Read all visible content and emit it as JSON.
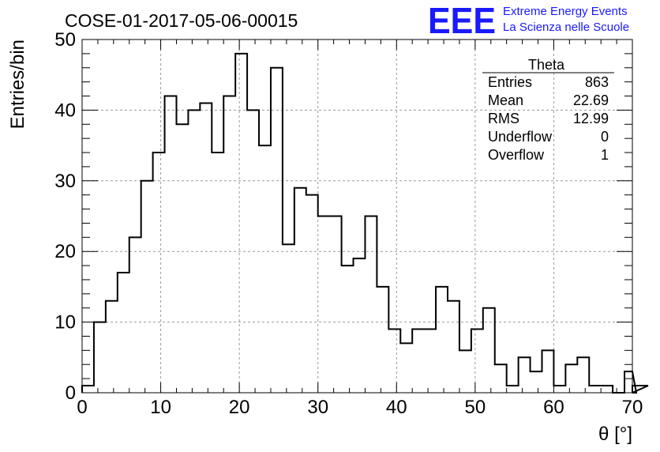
{
  "chart_data": {
    "type": "bar",
    "title": "COSE-01-2017-05-06-00015",
    "xlabel": "θ [°]",
    "ylabel": "Entries/bin",
    "xlim": [
      0,
      70
    ],
    "ylim": [
      0,
      50
    ],
    "bin_width": 1.5,
    "grid": true,
    "xticks": [
      "0",
      "10",
      "20",
      "30",
      "40",
      "50",
      "60",
      "70"
    ],
    "yticks": [
      "0",
      "10",
      "20",
      "30",
      "40",
      "50"
    ],
    "values": [
      1,
      10,
      13,
      17,
      22,
      30,
      34,
      42,
      38,
      40,
      41,
      34,
      42,
      48,
      40,
      35,
      46,
      21,
      29,
      28,
      25,
      25,
      18,
      19,
      25,
      15,
      9,
      7,
      9,
      9,
      15,
      13,
      6,
      9,
      12,
      4,
      1,
      5,
      3,
      6,
      1,
      4,
      5,
      1,
      1,
      0,
      3,
      0,
      1
    ],
    "stats_box": {
      "title": "Theta",
      "rows": [
        {
          "label": "Entries",
          "value": "863"
        },
        {
          "label": "Mean",
          "value": "22.69"
        },
        {
          "label": "RMS",
          "value": "12.99"
        },
        {
          "label": "Underflow",
          "value": "0"
        },
        {
          "label": "Overflow",
          "value": "1"
        }
      ]
    }
  },
  "logo": {
    "mark": "EEE",
    "line1": "Extreme Energy Events",
    "line2": "La Scienza nelle Scuole",
    "color": "#1a1aff"
  },
  "colors": {
    "histogram": "#000000",
    "grid": "#999999",
    "logo": "#1a1aff"
  }
}
